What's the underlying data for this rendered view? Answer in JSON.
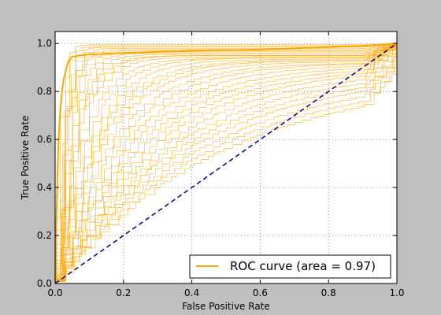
{
  "chart_data": {
    "type": "line",
    "title": "",
    "xlabel": "False Positive Rate",
    "ylabel": "True Positive Rate",
    "xlim": [
      0.0,
      1.0
    ],
    "ylim": [
      0.0,
      1.05
    ],
    "xticks": [
      0.0,
      0.2,
      0.4,
      0.6,
      0.8,
      1.0
    ],
    "yticks": [
      0.0,
      0.2,
      0.4,
      0.6,
      0.8,
      1.0
    ],
    "x_tick_labels": [
      "0.0",
      "0.2",
      "0.4",
      "0.6",
      "0.8",
      "1.0"
    ],
    "y_tick_labels": [
      "0.0",
      "0.2",
      "0.4",
      "0.6",
      "0.8",
      "1.0"
    ],
    "grid": true,
    "legend": {
      "position": "lower-right",
      "entries": [
        "ROC curve (area = 0.97)"
      ]
    },
    "colors": {
      "roc": "#ffa500",
      "diagonal": "#000080",
      "frame": "#000000",
      "grid": "#7f7f7f",
      "figure_bg": "#bfbfbf",
      "axes_bg": "#ffffff"
    },
    "series": [
      {
        "style": "thick",
        "x": [
          0.0,
          0.005,
          0.01,
          0.015,
          0.02,
          0.025,
          0.03,
          0.035,
          0.04,
          0.05,
          0.07,
          0.1,
          0.2,
          0.4,
          0.6,
          0.8,
          0.9,
          1.0
        ],
        "y": [
          0.0,
          0.35,
          0.6,
          0.72,
          0.8,
          0.85,
          0.88,
          0.91,
          0.93,
          0.945,
          0.95,
          0.955,
          0.96,
          0.97,
          0.975,
          0.985,
          0.99,
          1.0
        ]
      },
      {
        "style": "diagonal",
        "x": [
          0.0,
          1.0
        ],
        "y": [
          0.0,
          1.0
        ]
      }
    ],
    "class_curves": [
      {
        "knee": 0.02,
        "plateau": 0.995
      },
      {
        "knee": 0.025,
        "plateau": 0.99
      },
      {
        "knee": 0.03,
        "plateau": 0.985
      },
      {
        "knee": 0.035,
        "plateau": 0.98
      },
      {
        "knee": 0.04,
        "plateau": 0.975
      },
      {
        "knee": 0.045,
        "plateau": 0.97
      },
      {
        "knee": 0.05,
        "plateau": 0.965
      },
      {
        "knee": 0.06,
        "plateau": 0.96
      },
      {
        "knee": 0.07,
        "plateau": 0.955
      },
      {
        "knee": 0.08,
        "plateau": 0.95
      },
      {
        "knee": 0.09,
        "plateau": 0.95
      },
      {
        "knee": 0.1,
        "plateau": 0.945
      },
      {
        "knee": 0.12,
        "plateau": 0.94
      },
      {
        "knee": 0.14,
        "plateau": 0.94
      },
      {
        "knee": 0.16,
        "plateau": 0.935
      },
      {
        "knee": 0.18,
        "plateau": 0.93
      },
      {
        "knee": 0.2,
        "plateau": 0.93
      },
      {
        "knee": 0.22,
        "plateau": 0.925
      },
      {
        "knee": 0.25,
        "plateau": 0.92
      },
      {
        "knee": 0.28,
        "plateau": 0.92
      },
      {
        "knee": 0.31,
        "plateau": 0.915
      },
      {
        "knee": 0.34,
        "plateau": 0.91
      },
      {
        "knee": 0.37,
        "plateau": 0.905
      },
      {
        "knee": 0.4,
        "plateau": 0.9
      },
      {
        "knee": 0.44,
        "plateau": 0.9
      },
      {
        "knee": 0.48,
        "plateau": 0.895
      },
      {
        "knee": 0.52,
        "plateau": 0.89
      },
      {
        "knee": 0.56,
        "plateau": 0.885
      },
      {
        "knee": 0.6,
        "plateau": 0.88
      },
      {
        "knee": 0.65,
        "plateau": 0.875
      },
      {
        "knee": 0.7,
        "plateau": 0.87
      },
      {
        "knee": 0.76,
        "plateau": 0.87
      }
    ]
  }
}
